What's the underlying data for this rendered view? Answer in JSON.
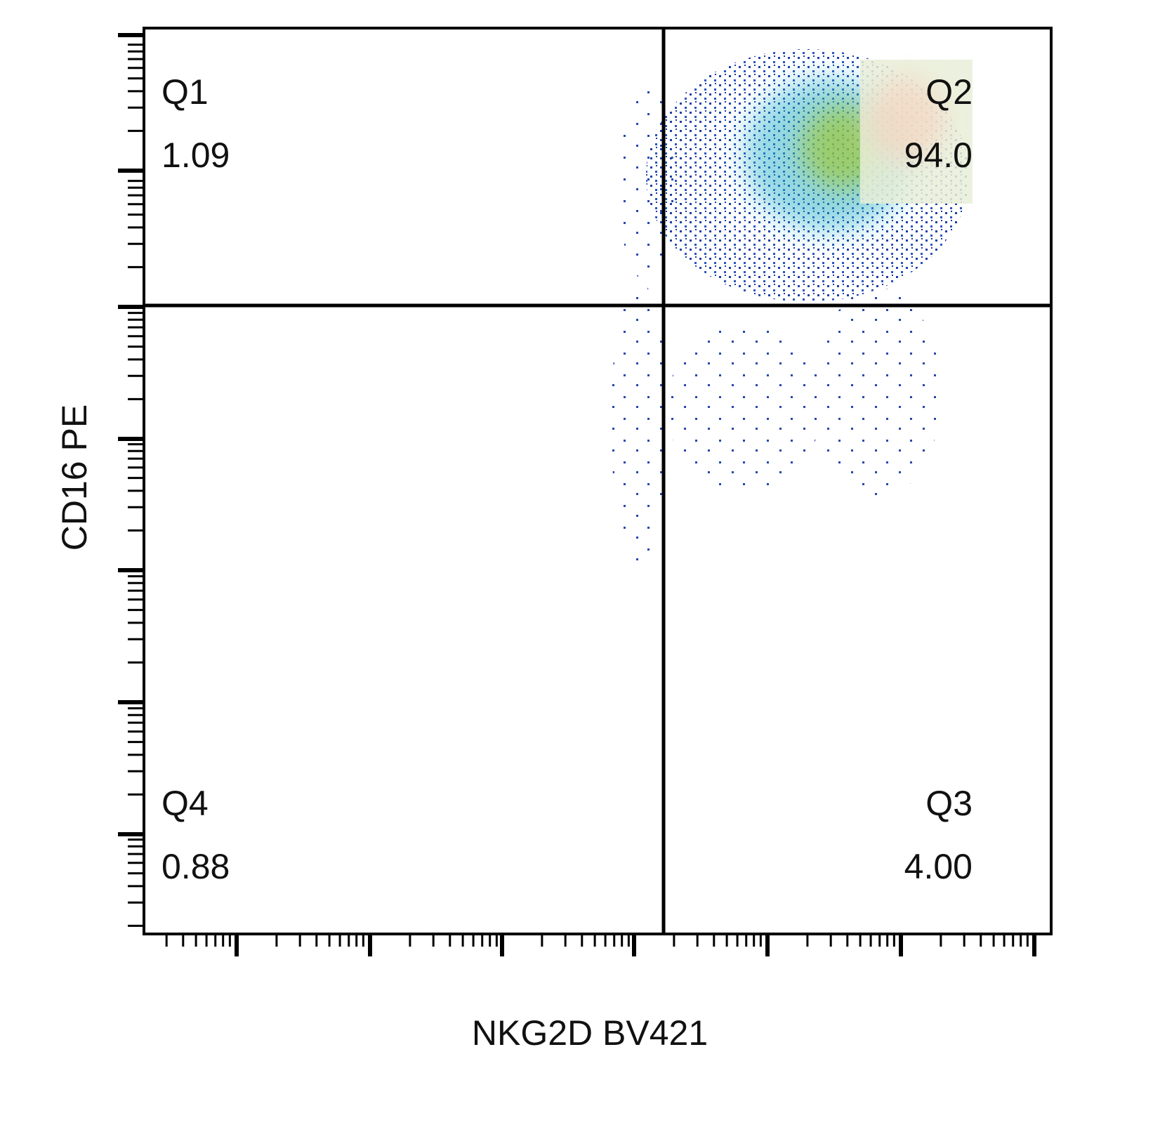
{
  "chart_data": {
    "type": "quadrant",
    "x_label": "NKG2D BV421",
    "y_label": "CD16 PE",
    "quadrants": [
      {
        "name": "Q1",
        "value": 1.09
      },
      {
        "name": "Q2",
        "value": 94.0,
        "value_label": "94.0"
      },
      {
        "name": "Q3",
        "value": 4.0,
        "value_label": "4.00"
      },
      {
        "name": "Q4",
        "value": 0.88
      }
    ]
  }
}
